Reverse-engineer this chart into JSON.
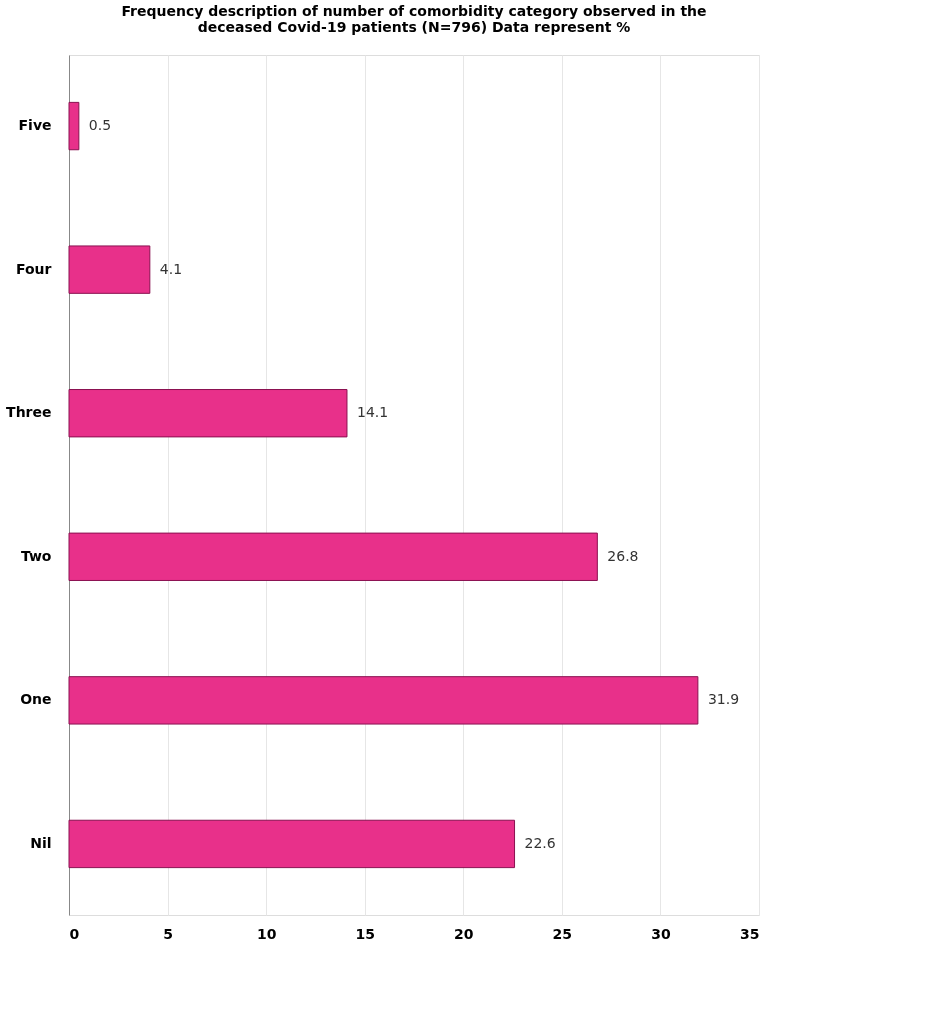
{
  "chart_data": {
    "type": "bar",
    "orientation": "horizontal",
    "title": "Frequency description of number of comorbidity category observed in the deceased Covid-19 patients (N=796) Data represent %",
    "categories": [
      "Five",
      "Four",
      "Three",
      "Two",
      "One",
      "Nil"
    ],
    "values": [
      0.5,
      4.1,
      14.1,
      26.8,
      31.9,
      22.6
    ],
    "color": "#e8308a",
    "xlim": [
      0,
      35
    ],
    "xticks": [
      0,
      5,
      10,
      15,
      20,
      25,
      30,
      35
    ],
    "grid": "x",
    "data_labels": true
  }
}
